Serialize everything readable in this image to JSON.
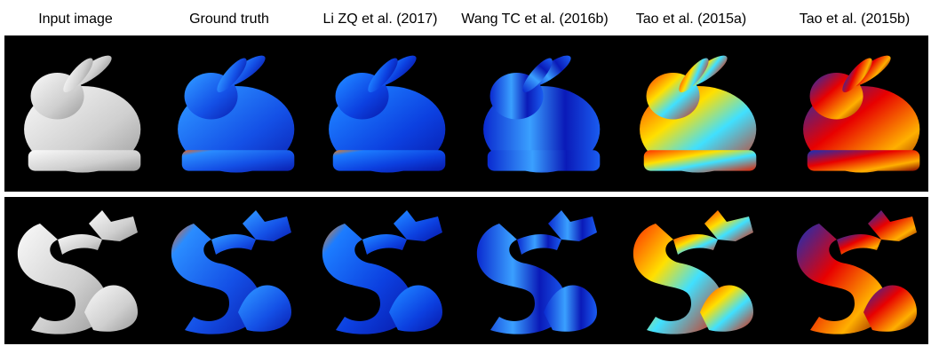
{
  "figure": {
    "columns": [
      "Input image",
      "Ground truth",
      "Li ZQ et al. (2017)",
      "Wang TC et al. (2016b)",
      "Tao et al. (2015a)",
      "Tao et al. (2015b)"
    ]
  }
}
